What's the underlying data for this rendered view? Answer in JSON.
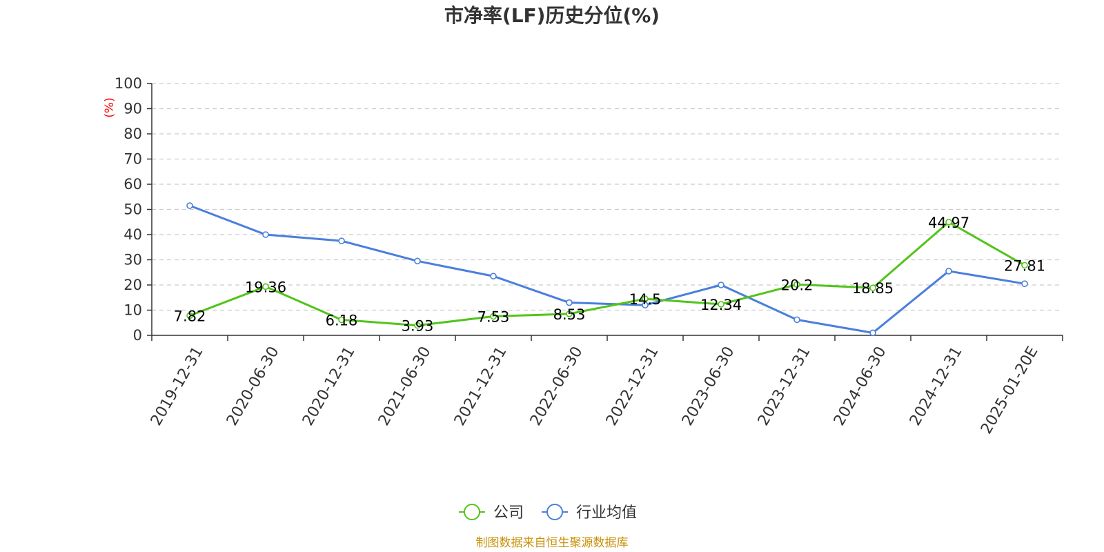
{
  "chart_data": {
    "type": "line",
    "title": "市净率(LF)历史分位(%)",
    "ylabel": "(%)",
    "xlabel": "",
    "ylim": [
      0,
      100
    ],
    "y_ticks": [
      0,
      10,
      20,
      30,
      40,
      50,
      60,
      70,
      80,
      90,
      100
    ],
    "grid": true,
    "legend_position": "bottom-center",
    "categories": [
      "2019-12-31",
      "2020-06-30",
      "2020-12-31",
      "2021-06-30",
      "2021-12-31",
      "2022-06-30",
      "2022-12-31",
      "2023-06-30",
      "2023-12-31",
      "2024-06-30",
      "2024-12-31",
      "2025-01-20E"
    ],
    "series": [
      {
        "name": "公司",
        "color": "#52c41a",
        "values": [
          7.82,
          19.36,
          6.18,
          3.93,
          7.53,
          8.53,
          14.5,
          12.34,
          20.2,
          18.85,
          44.97,
          27.81
        ],
        "labels": [
          "7.82",
          "19.36",
          "6.18",
          "3.93",
          "7.53",
          "8.53",
          "14.5",
          "12.34",
          "20.2",
          "18.85",
          "44.97",
          "27.81"
        ]
      },
      {
        "name": "行业均值",
        "color": "#4a7fdc",
        "values": [
          51.5,
          40,
          37.5,
          29.5,
          23.5,
          13,
          12,
          20,
          6.2,
          1,
          25.5,
          20.5
        ]
      }
    ],
    "source": "制图数据来自恒生聚源数据库"
  }
}
